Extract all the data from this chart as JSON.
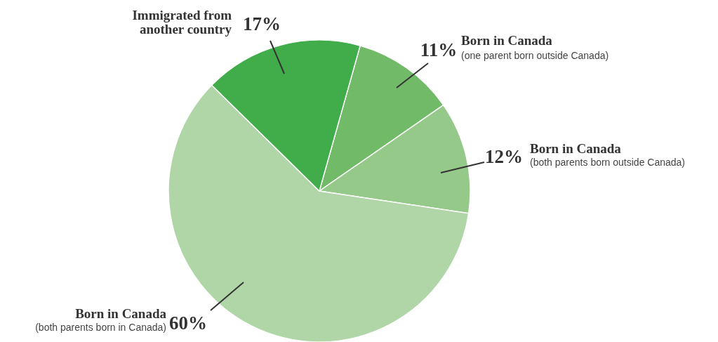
{
  "chart_data": {
    "type": "pie",
    "categories": [
      "Born in Canada",
      "Born in Canada",
      "Born in Canada",
      "Immigrated from\nanother country"
    ],
    "values": [
      11,
      12,
      60,
      17
    ],
    "value_labels": [
      "11%",
      "12%",
      "60%",
      "17%"
    ],
    "colors": [
      "#70ba68",
      "#95c98a",
      "#b0d6a8",
      "#40ad4a"
    ],
    "annotations": [
      "(one parent born outside Canada)",
      "(both parents born outside Canada)",
      "(both parents born in Canada)"
    ],
    "legend": false
  }
}
